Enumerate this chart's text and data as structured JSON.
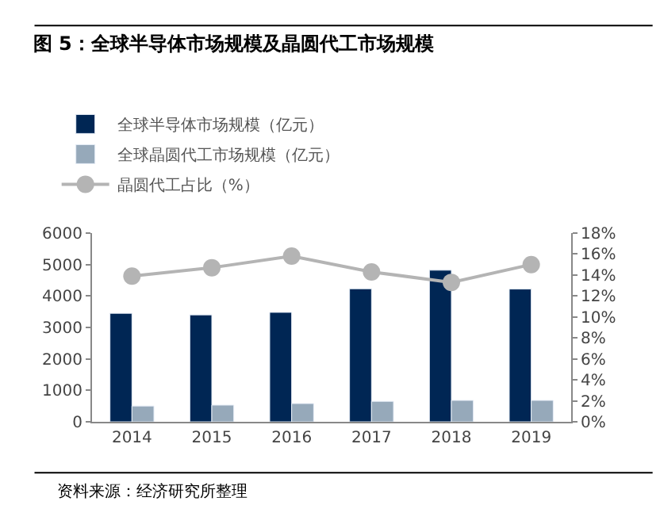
{
  "chart_data": {
    "type": "bar",
    "title": "图 5：全球半导体市场规模及晶圆代工市场规模",
    "categories": [
      "2014",
      "2015",
      "2016",
      "2017",
      "2018",
      "2019"
    ],
    "series": [
      {
        "name": "全球半导体市场规模（亿元）",
        "color": "#002654",
        "values": [
          3450,
          3400,
          3480,
          4230,
          4820,
          4220
        ]
      },
      {
        "name": "全球晶圆代工市场规模（亿元）",
        "color": "#96a9ba",
        "values": [
          500,
          530,
          580,
          650,
          680,
          680
        ]
      },
      {
        "name": "晶圆代工占比（%）",
        "type": "line",
        "axis": "y2",
        "color": "#b4b4b4",
        "marker": "circle",
        "values": [
          13.9,
          14.7,
          15.8,
          14.3,
          13.3,
          15.0
        ]
      }
    ],
    "ylim": [
      0,
      6000
    ],
    "yticks": [
      0,
      1000,
      2000,
      3000,
      4000,
      5000,
      6000
    ],
    "y2lim": [
      0,
      18
    ],
    "y2ticks": [
      {
        "value": 0,
        "label": "0%"
      },
      {
        "value": 2,
        "label": "2%"
      },
      {
        "value": 4,
        "label": "4%"
      },
      {
        "value": 6,
        "label": "6%"
      },
      {
        "value": 8,
        "label": "8%"
      },
      {
        "value": 10,
        "label": "10%"
      },
      {
        "value": 12,
        "label": "12%"
      },
      {
        "value": 14,
        "label": "14%"
      },
      {
        "value": 16,
        "label": "16%"
      },
      {
        "value": 18,
        "label": "18%"
      }
    ],
    "legend": "top",
    "annotations": [
      "资料来源：经济研究所整理"
    ]
  }
}
